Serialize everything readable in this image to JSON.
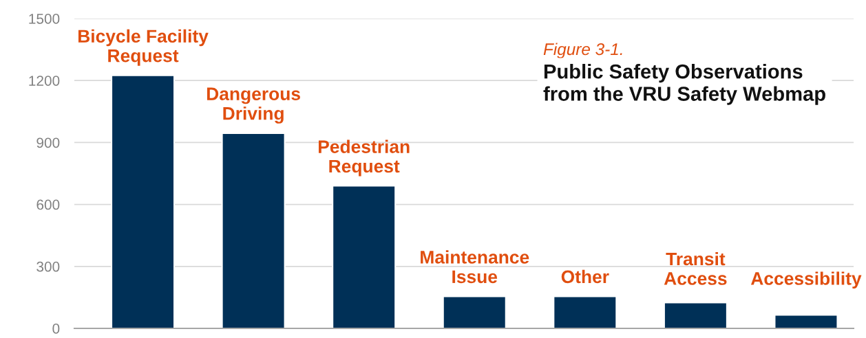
{
  "chart_data": {
    "type": "bar",
    "title": "Public Safety Observations\nfrom the VRU Safety Webmap",
    "annotations": [
      "Figure 3-1."
    ],
    "categories": [
      "Bicycle Facility\nRequest",
      "Dangerous\nDriving",
      "Pedestrian\nRequest",
      "Maintenance\nIssue",
      "Other",
      "Transit\nAccess",
      "Accessibility"
    ],
    "values": [
      1225,
      945,
      690,
      155,
      155,
      125,
      65
    ],
    "color": "#003057",
    "ylim": [
      0,
      1500
    ],
    "yticks": [
      0,
      300,
      600,
      900,
      1200,
      1500
    ],
    "grid": "y"
  }
}
